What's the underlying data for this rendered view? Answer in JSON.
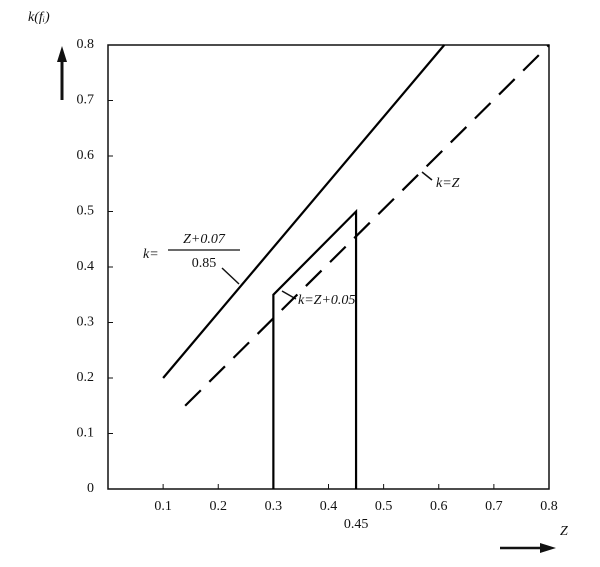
{
  "chart_data": {
    "type": "line",
    "y_label": "k(fᵢ)",
    "x_label": "Z",
    "xlim": [
      0,
      0.8
    ],
    "ylim": [
      0,
      0.8
    ],
    "xticks": [
      0.1,
      0.2,
      0.3,
      0.4,
      0.45,
      0.5,
      0.6,
      0.7,
      0.8
    ],
    "yticks": [
      0,
      0.1,
      0.2,
      0.3,
      0.4,
      0.5,
      0.6,
      0.7,
      0.8
    ],
    "series": [
      {
        "color": "#000000",
        "style": "solid",
        "x": [
          0.1,
          0.61
        ],
        "values": [
          0.2,
          0.8
        ]
      },
      {
        "color": "#000000",
        "style": "dashed",
        "x": [
          0.14,
          0.8
        ],
        "values": [
          0.15,
          0.8
        ]
      },
      {
        "color": "#000000",
        "style": "solid",
        "x": [
          0.3,
          0.3,
          0.45,
          0.45
        ],
        "values": [
          0,
          0.35,
          0.5,
          0
        ]
      }
    ],
    "annotations": [
      {
        "text": "k=Z"
      },
      {
        "text": "k=Z+0.05"
      },
      {
        "text": "k=",
        "numerator": "Z+0.07",
        "denominator": "0.85"
      }
    ]
  }
}
